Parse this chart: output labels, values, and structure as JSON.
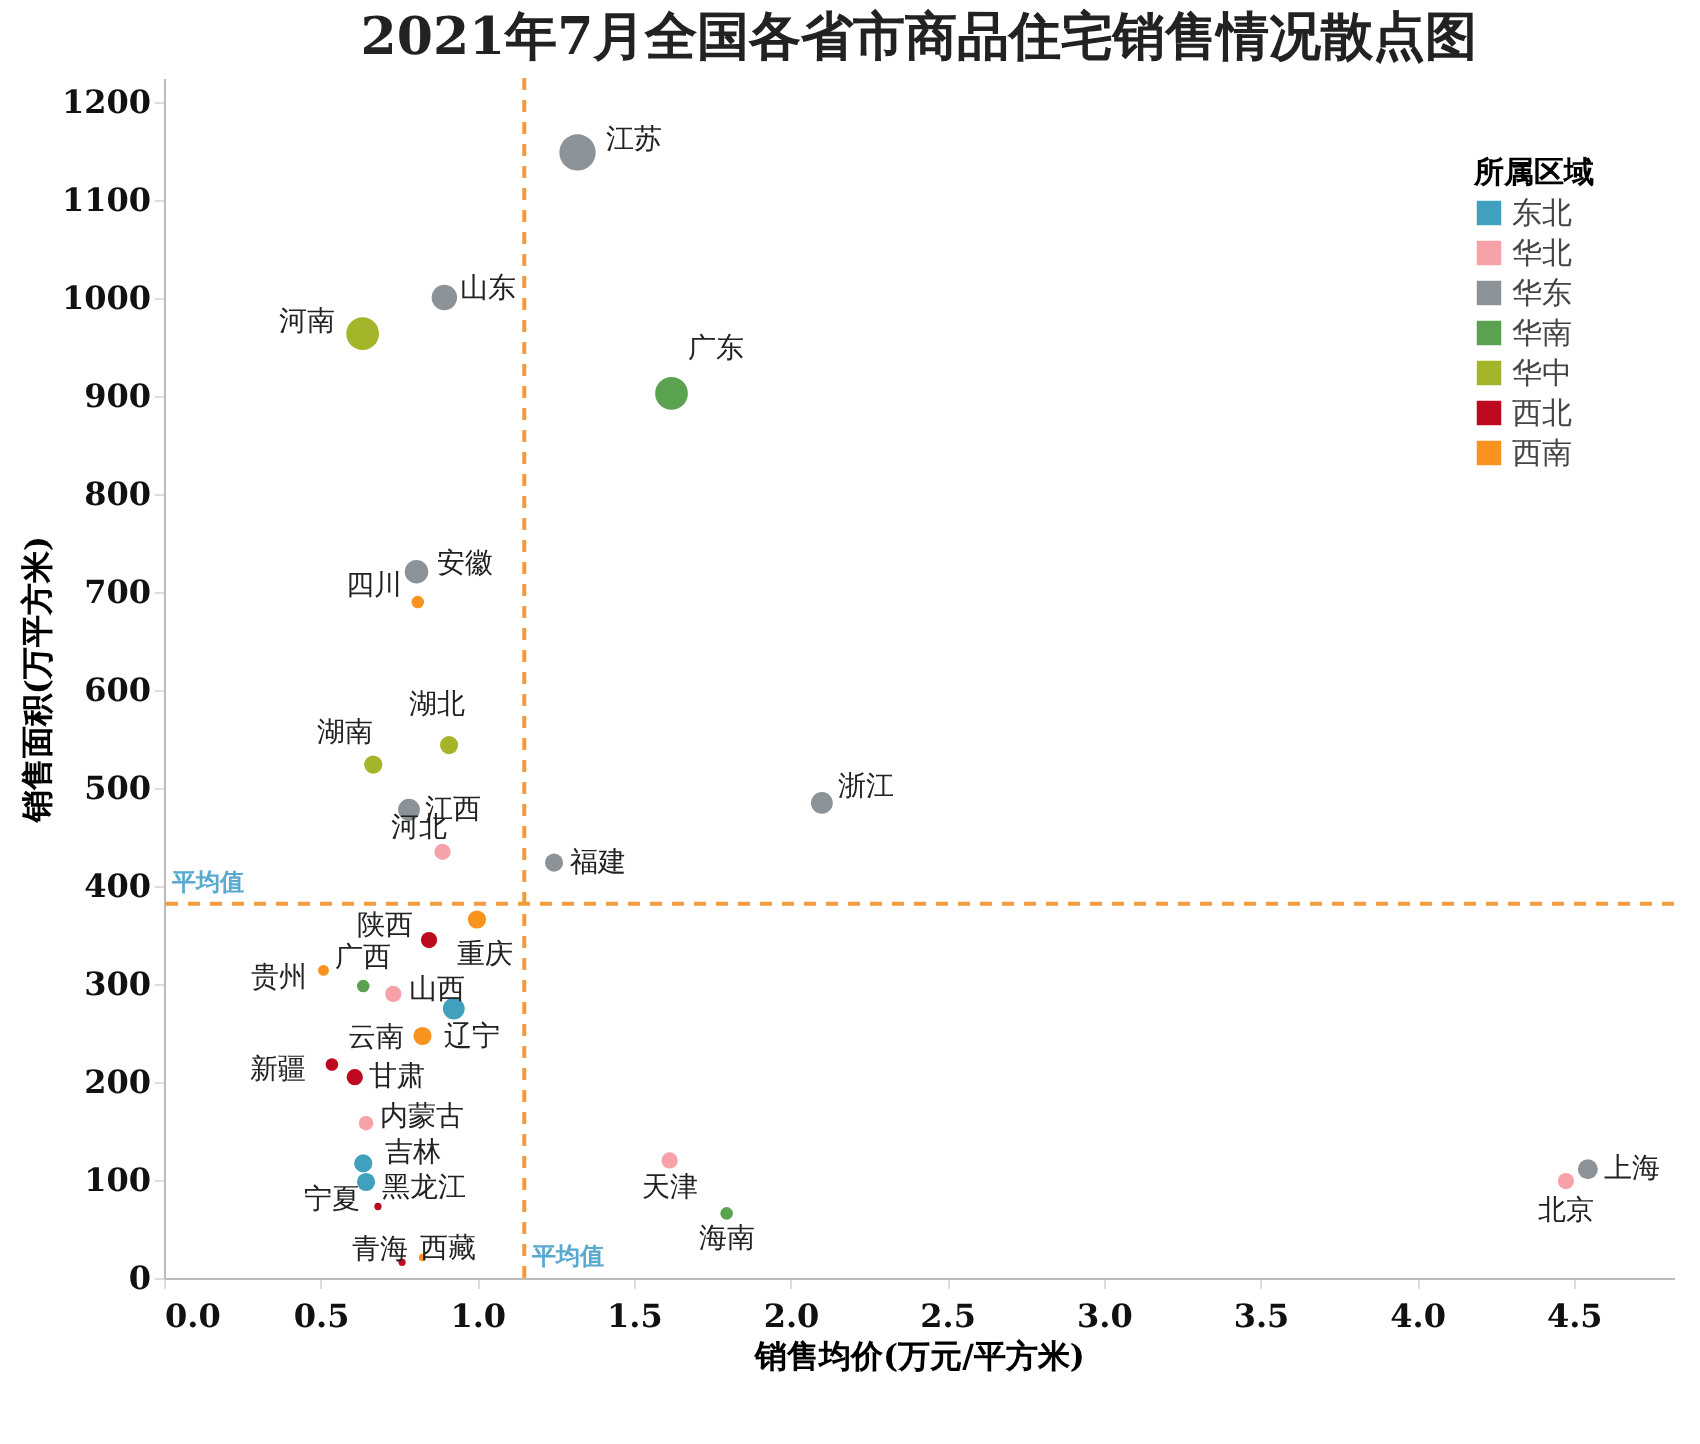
{
  "chart_data": {
    "type": "bubble",
    "title": "2021年7月全国各省市商品住宅销售情况散点图",
    "xlabel": "销售均价(万元/平方米)",
    "ylabel": "销售面积(万平方米)",
    "legend_title": "所属区域",
    "legend": "top right",
    "xlim": [
      0,
      4.82
    ],
    "ylim": [
      0,
      1225
    ],
    "xticks": [
      {
        "value": 0,
        "label": "0.0"
      },
      {
        "value": 0.5,
        "label": "0.5"
      },
      {
        "value": 1,
        "label": "1.0"
      },
      {
        "value": 1.5,
        "label": "1.5"
      },
      {
        "value": 2,
        "label": "2.0"
      },
      {
        "value": 2.5,
        "label": "2.5"
      },
      {
        "value": 3,
        "label": "3.0"
      },
      {
        "value": 3.5,
        "label": "3.5"
      },
      {
        "value": 4,
        "label": "4.0"
      },
      {
        "value": 4.5,
        "label": "4.5"
      }
    ],
    "yticks": [
      0,
      100,
      200,
      300,
      400,
      500,
      600,
      700,
      800,
      900,
      {
        "value": 1000,
        "label": "1000"
      },
      {
        "value": 1100,
        "label": "1100"
      },
      {
        "value": 1200,
        "label": "1200"
      }
    ],
    "series": [
      {
        "name": "东北",
        "color": "#41a0bd",
        "x": [
          0.925,
          0.636,
          0.645
        ],
        "values": [
          275,
          117,
          98
        ],
        "sizes": [
          0.36,
          0.25,
          0.25
        ]
      },
      {
        "name": "华北",
        "color": "#f7a1a9",
        "x": [
          4.475,
          1.614,
          0.889,
          0.732,
          0.645
        ],
        "values": [
          99,
          120,
          435,
          290,
          158
        ],
        "sizes": [
          0.2,
          0.2,
          0.2,
          0.2,
          0.16
        ]
      },
      {
        "name": "华东",
        "color": "#8c9398",
        "x": [
          4.545,
          1.32,
          2.1,
          0.806,
          1.245,
          0.782,
          0.895
        ],
        "values": [
          111,
          1149,
          485,
          721,
          424,
          478,
          1001
        ],
        "sizes": [
          0.3,
          1,
          0.36,
          0.42,
          0.25,
          0.36,
          0.49
        ]
      },
      {
        "name": "华南",
        "color": "#5aa150",
        "x": [
          1.62,
          0.636,
          1.796
        ],
        "values": [
          903,
          298,
          66
        ],
        "sizes": [
          0.81,
          0.12,
          0.12
        ]
      },
      {
        "name": "华中",
        "color": "#a4b52a",
        "x": [
          0.634,
          0.91,
          0.668
        ],
        "values": [
          964,
          544,
          524
        ],
        "sizes": [
          0.81,
          0.25,
          0.25
        ]
      },
      {
        "name": "西北",
        "color": "#bd0a1f",
        "x": [
          0.846,
          0.609,
          0.76,
          0.683,
          0.536
        ],
        "values": [
          345,
          205,
          16,
          73,
          218
        ],
        "sizes": [
          0.2,
          0.2,
          0.04,
          0.04,
          0.12
        ]
      },
      {
        "name": "西南",
        "color": "#f7931e",
        "x": [
          0.999,
          0.81,
          0.509,
          0.825,
          0.825
        ],
        "values": [
          366,
          690,
          314,
          247,
          21
        ],
        "sizes": [
          0.25,
          0.12,
          0.09,
          0.25,
          0.04
        ]
      }
    ],
    "ref_lines": [
      {
        "axis": "x",
        "value": 1.15,
        "label": "平均值",
        "color": "#f29c3f",
        "line_style": "dashed"
      },
      {
        "axis": "y",
        "value": 382,
        "label": "平均值",
        "color": "#f29c3f",
        "line_style": "dashed"
      }
    ],
    "annotations": [
      {
        "text": "江苏",
        "x": 1.32,
        "y": 1149
      },
      {
        "text": "山东",
        "x": 0.895,
        "y": 1001
      },
      {
        "text": "河南",
        "x": 0.634,
        "y": 964
      },
      {
        "text": "广东",
        "x": 1.62,
        "y": 903
      },
      {
        "text": "安徽",
        "x": 0.806,
        "y": 721
      },
      {
        "text": "四川",
        "x": 0.81,
        "y": 690
      },
      {
        "text": "湖北",
        "x": 0.91,
        "y": 544
      },
      {
        "text": "湖南",
        "x": 0.668,
        "y": 524
      },
      {
        "text": "江西",
        "x": 0.782,
        "y": 478
      },
      {
        "text": "河北",
        "x": 0.889,
        "y": 435
      },
      {
        "text": "福建",
        "x": 1.245,
        "y": 424
      },
      {
        "text": "浙江",
        "x": 2.1,
        "y": 485
      },
      {
        "text": "重庆",
        "x": 0.999,
        "y": 366
      },
      {
        "text": "陕西",
        "x": 0.846,
        "y": 345
      },
      {
        "text": "贵州",
        "x": 0.509,
        "y": 314
      },
      {
        "text": "广西",
        "x": 0.636,
        "y": 298
      },
      {
        "text": "山西",
        "x": 0.732,
        "y": 290
      },
      {
        "text": "辽宁",
        "x": 0.925,
        "y": 275
      },
      {
        "text": "云南",
        "x": 0.825,
        "y": 247
      },
      {
        "text": "新疆",
        "x": 0.536,
        "y": 218
      },
      {
        "text": "甘肃",
        "x": 0.609,
        "y": 205
      },
      {
        "text": "内蒙古",
        "x": 0.645,
        "y": 158
      },
      {
        "text": "吉林",
        "x": 0.636,
        "y": 117
      },
      {
        "text": "黑龙江",
        "x": 0.645,
        "y": 98
      },
      {
        "text": "宁夏",
        "x": 0.683,
        "y": 73
      },
      {
        "text": "青海",
        "x": 0.76,
        "y": 16
      },
      {
        "text": "西藏",
        "x": 0.825,
        "y": 21
      },
      {
        "text": "天津",
        "x": 1.614,
        "y": 120
      },
      {
        "text": "海南",
        "x": 1.796,
        "y": 66
      },
      {
        "text": "北京",
        "x": 4.475,
        "y": 99
      },
      {
        "text": "上海",
        "x": 4.545,
        "y": 111
      }
    ]
  }
}
